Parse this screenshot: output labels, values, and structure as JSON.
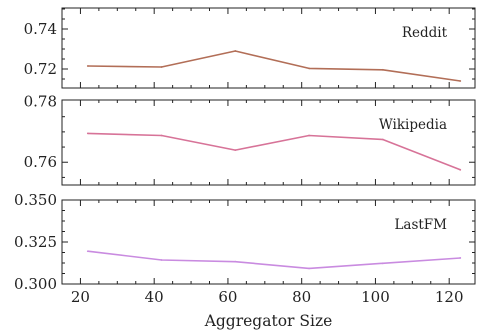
{
  "chart_data": [
    {
      "type": "line",
      "title": "Reddit",
      "x": [
        22,
        42,
        62,
        82,
        102,
        123
      ],
      "series": [
        {
          "name": "",
          "values": [
            0.7215,
            0.721,
            0.729,
            0.7203,
            0.7196,
            0.714
          ],
          "color": "#b26e57"
        }
      ],
      "xlim": [
        15,
        127
      ],
      "ylim": [
        0.7105,
        0.7505
      ],
      "yticks": [
        0.72,
        0.74
      ],
      "ytick_labels": [
        "0.72",
        "0.74"
      ],
      "xlabel": "",
      "ylabel": "",
      "grid": false
    },
    {
      "type": "line",
      "title": "Wikipedia",
      "x": [
        22,
        42,
        62,
        82,
        102,
        123
      ],
      "series": [
        {
          "name": "",
          "values": [
            0.7695,
            0.7688,
            0.764,
            0.7688,
            0.7675,
            0.7575
          ],
          "color": "#d77398"
        }
      ],
      "xlim": [
        15,
        127
      ],
      "ylim": [
        0.7525,
        0.7805
      ],
      "yticks": [
        0.76,
        0.78
      ],
      "ytick_labels": [
        "0.76",
        "0.78"
      ],
      "xlabel": "",
      "ylabel": "",
      "grid": false
    },
    {
      "type": "line",
      "title": "LastFM",
      "x": [
        22,
        42,
        62,
        82,
        102,
        123
      ],
      "series": [
        {
          "name": "",
          "values": [
            0.3195,
            0.3143,
            0.3133,
            0.3093,
            0.3123,
            0.3155
          ],
          "color": "#c98be0"
        }
      ],
      "xlim": [
        15,
        127
      ],
      "ylim": [
        0.3,
        0.35
      ],
      "yticks": [
        0.3,
        0.325,
        0.35
      ],
      "ytick_labels": [
        "0.300",
        "0.325",
        "0.350"
      ],
      "xlabel": "Aggregator Size",
      "ylabel": "",
      "grid": false
    }
  ],
  "x_ticks": [
    20,
    40,
    60,
    80,
    100,
    120
  ],
  "x_tick_labels": [
    "20",
    "40",
    "60",
    "80",
    "100",
    "120"
  ],
  "xlabel": "Aggregator Size"
}
